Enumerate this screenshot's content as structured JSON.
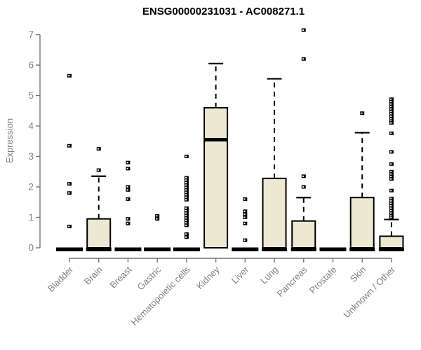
{
  "colors": {
    "box_fill": "#ede8d1",
    "box_stroke": "#000000",
    "median_color": "#000000",
    "outlier_color": "#000000",
    "axis_color": "#747474",
    "tick_label_color": "#818181",
    "title_color": "#000000",
    "background": "#ffffff"
  },
  "chart_data": {
    "type": "boxplot",
    "title": "ENSG00000231031 - AC008271.1",
    "xlabel": "",
    "ylabel": "Expression",
    "ylim": [
      0,
      7
    ],
    "yticks": [
      0,
      1,
      2,
      3,
      4,
      5,
      6,
      7
    ],
    "grid": false,
    "legend": false,
    "categories": [
      "Bladder",
      "Brain",
      "Breast",
      "Gastric",
      "Hematopoietic cells",
      "Kidney",
      "Liver",
      "Lung",
      "Pancreas",
      "Prostate",
      "Skin",
      "Unknown / Other"
    ],
    "series": [
      {
        "name": "Bladder",
        "q1": 0,
        "median": 0,
        "q3": 0,
        "whisker_low": 0,
        "whisker_high": 0,
        "outliers": [
          5.65,
          3.35,
          2.1,
          1.8,
          0.7
        ]
      },
      {
        "name": "Brain",
        "q1": 0,
        "median": 0,
        "q3": 0.95,
        "whisker_low": 0,
        "whisker_high": 2.35,
        "outliers": [
          3.25,
          2.55
        ]
      },
      {
        "name": "Breast",
        "q1": 0,
        "median": 0,
        "q3": 0,
        "whisker_low": 0,
        "whisker_high": 0,
        "outliers": [
          2.8,
          2.6,
          2.0,
          1.9,
          1.6,
          0.95,
          0.8
        ]
      },
      {
        "name": "Gastric",
        "q1": 0,
        "median": 0,
        "q3": 0,
        "whisker_low": 0,
        "whisker_high": 0,
        "outliers": [
          1.05,
          0.95
        ]
      },
      {
        "name": "Hematopoietic cells",
        "q1": 0,
        "median": 0,
        "q3": 0,
        "whisker_low": 0,
        "whisker_high": 0,
        "outliers": [
          3.0,
          2.3,
          2.22,
          2.14,
          2.06,
          1.98,
          1.9,
          1.82,
          1.74,
          1.66,
          1.58,
          1.3,
          1.22,
          1.14,
          1.06,
          0.98,
          0.9,
          0.82,
          0.74,
          0.45,
          0.35
        ]
      },
      {
        "name": "Kidney",
        "q1": 0,
        "median": 3.55,
        "q3": 4.6,
        "whisker_low": 0,
        "whisker_high": 6.05,
        "outliers": []
      },
      {
        "name": "Liver",
        "q1": 0,
        "median": 0,
        "q3": 0,
        "whisker_low": 0,
        "whisker_high": 0,
        "outliers": [
          1.6,
          1.2,
          1.1,
          1.0,
          0.8,
          0.25
        ]
      },
      {
        "name": "Lung",
        "q1": 0,
        "median": 0,
        "q3": 2.28,
        "whisker_low": 0,
        "whisker_high": 5.55,
        "outliers": []
      },
      {
        "name": "Pancreas",
        "q1": 0,
        "median": 0,
        "q3": 0.88,
        "whisker_low": 0,
        "whisker_high": 1.65,
        "outliers": [
          7.15,
          6.2,
          2.35,
          2.0
        ]
      },
      {
        "name": "Prostate",
        "q1": 0,
        "median": 0,
        "q3": 0,
        "whisker_low": 0,
        "whisker_high": 0,
        "outliers": []
      },
      {
        "name": "Skin",
        "q1": 0,
        "median": 0,
        "q3": 1.65,
        "whisker_low": 0,
        "whisker_high": 3.78,
        "outliers": [
          4.42
        ]
      },
      {
        "name": "Unknown / Other",
        "q1": 0,
        "median": 0,
        "q3": 0.38,
        "whisker_low": 0,
        "whisker_high": 0.93,
        "outliers": [
          4.88,
          4.8,
          4.72,
          4.64,
          4.56,
          4.48,
          4.4,
          4.32,
          4.24,
          4.16,
          4.1,
          3.76,
          3.15,
          2.75,
          2.5,
          2.42,
          2.34,
          2.26,
          1.88,
          1.62,
          1.54,
          1.46,
          1.38,
          1.3,
          1.22,
          1.14,
          1.06,
          1.0
        ]
      }
    ]
  }
}
